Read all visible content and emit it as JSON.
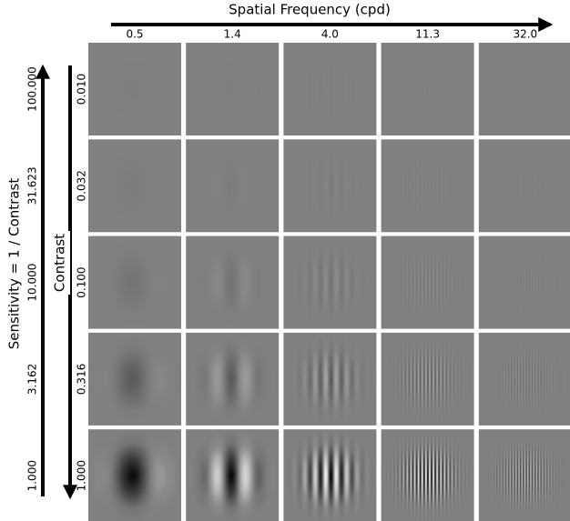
{
  "title": "Spatial Frequency (cpd)",
  "y_label": "Sensitivity = 1 / Contrast",
  "y2_label": "Contrast",
  "frequencies": [
    0.5,
    1.4,
    {
      "value": 4,
      "label": "4.0"
    },
    11.3,
    {
      "value": 32,
      "label": "32.0"
    }
  ],
  "contrasts": [
    {
      "value": 0.01,
      "label": "0.010"
    },
    {
      "value": 0.032,
      "label": "0.032"
    },
    {
      "value": 0.1,
      "label": "0.100"
    },
    {
      "value": 0.316,
      "label": "0.316"
    },
    {
      "value": 1,
      "label": "1.000"
    }
  ],
  "sensitivities": [
    {
      "value": 100,
      "label": "100.000"
    },
    {
      "value": 31.623,
      "label": "31.623"
    },
    {
      "value": 10,
      "label": "10.000"
    },
    {
      "value": 3.162,
      "label": "3.162"
    },
    {
      "value": 1,
      "label": "1.000"
    }
  ]
}
